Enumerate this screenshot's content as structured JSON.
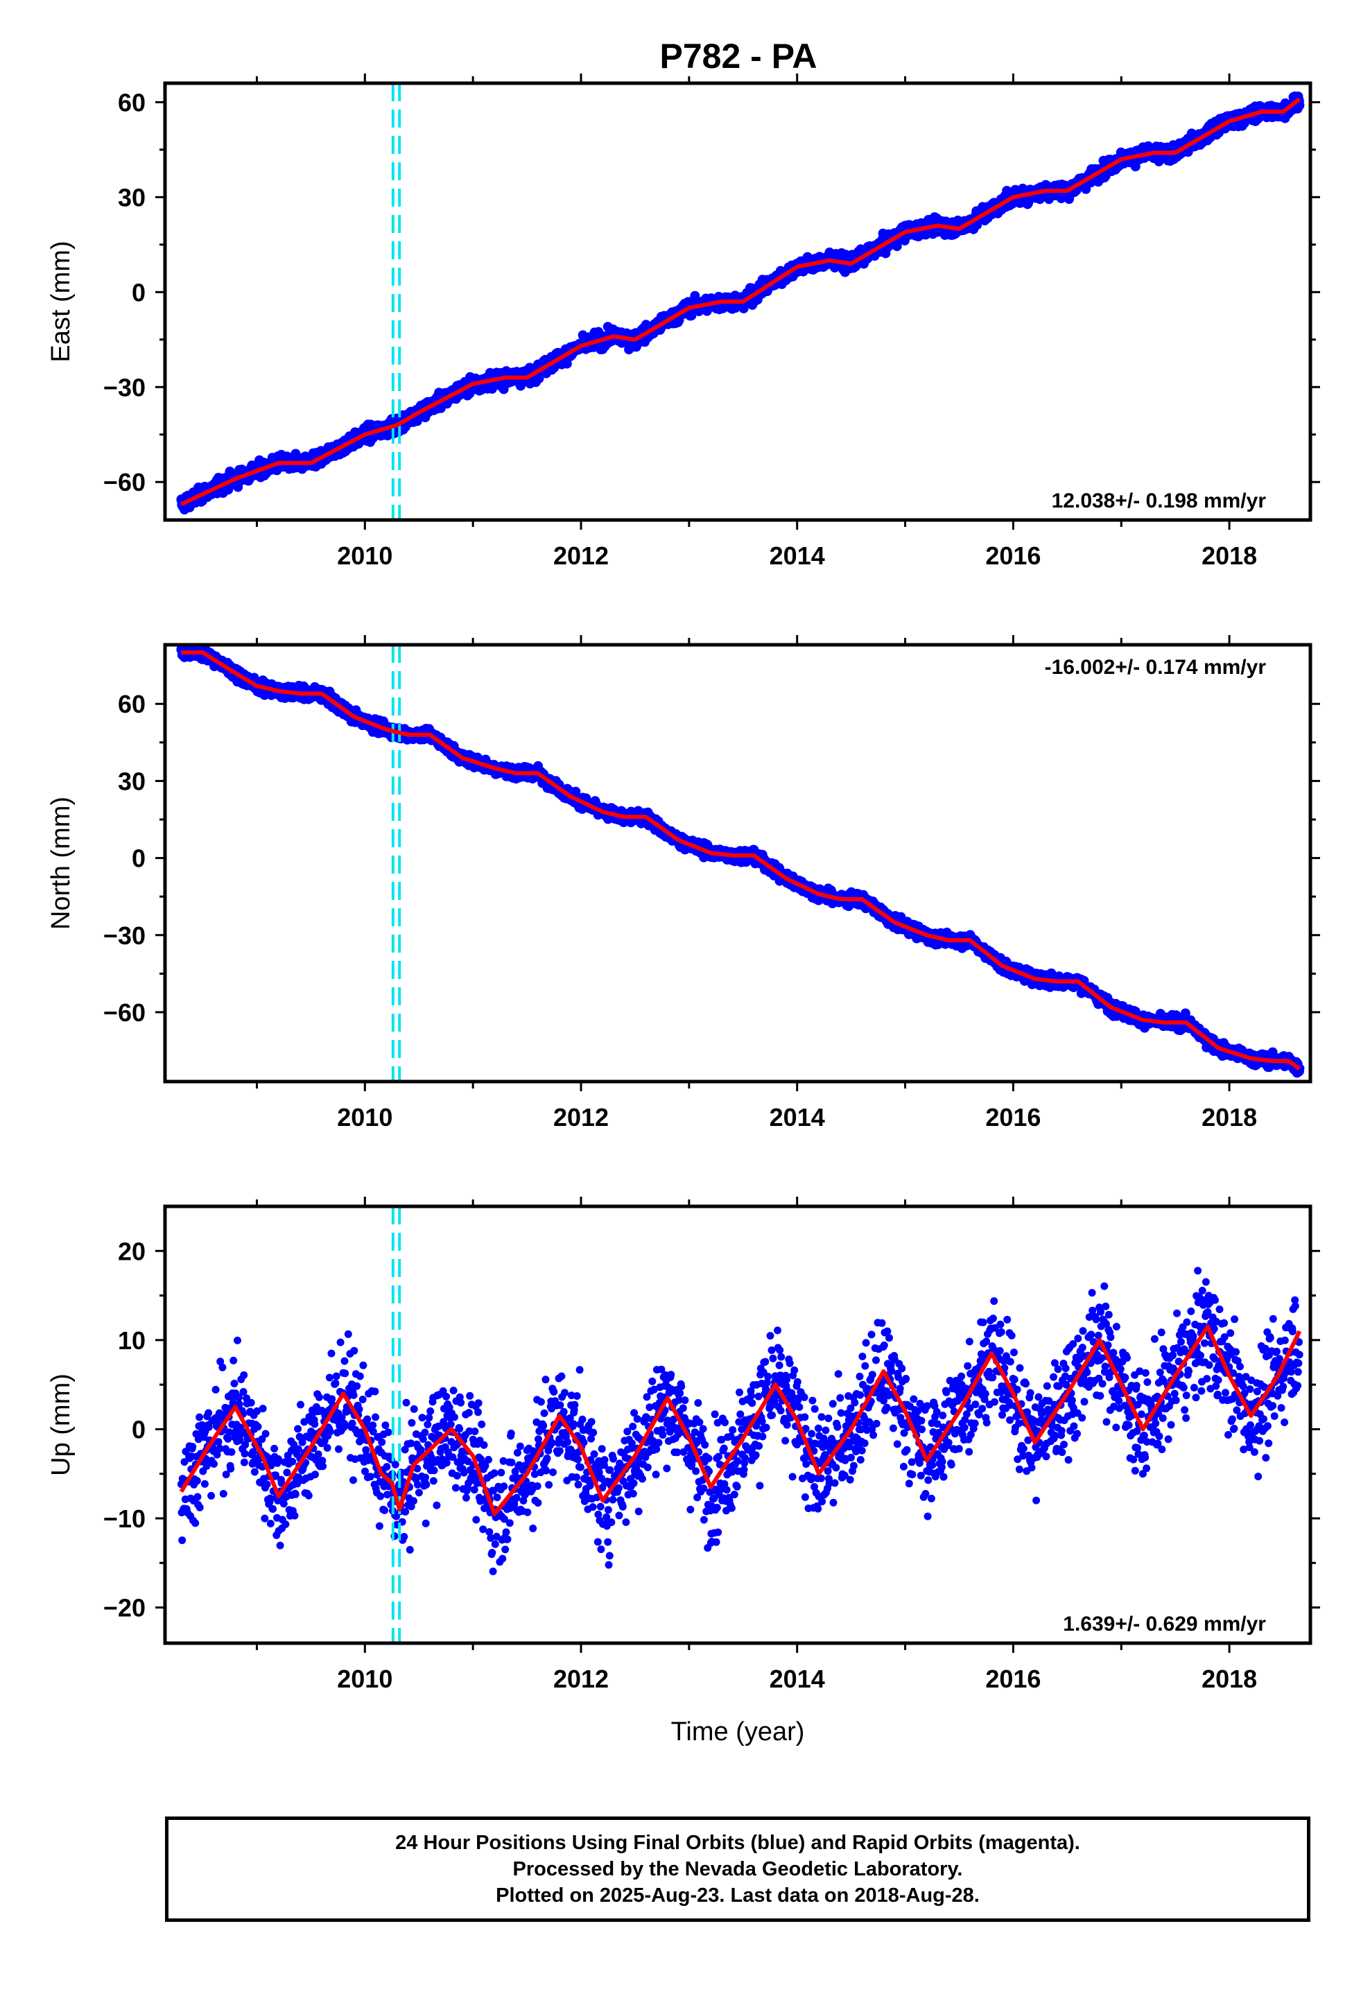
{
  "title": "P782 - PA",
  "colors": {
    "points": "#0000ff",
    "fit": "#ff0000",
    "event_lines": "#00e5ee",
    "frame": "#000000"
  },
  "footer": {
    "line1": "24 Hour Positions Using Final Orbits (blue) and Rapid Orbits (magenta).",
    "line2": "Processed by the Nevada Geodetic Laboratory.",
    "line3": "Plotted on 2025-Aug-23. Last data on 2018-Aug-28."
  },
  "chart_data": [
    {
      "type": "scatter",
      "name": "east",
      "ylabel": "East (mm)",
      "xlabel": "",
      "xlim": [
        2008.15,
        2018.75
      ],
      "ylim": [
        -72,
        66
      ],
      "x_ticks": [
        2010,
        2012,
        2014,
        2016,
        2018
      ],
      "y_ticks": [
        -60,
        -30,
        0,
        30,
        60
      ],
      "rate_label": "12.038+/- 0.198 mm/yr",
      "rate_position": "bottom-right",
      "event_lines": [
        2010.26,
        2010.32
      ],
      "trend": {
        "start_year": 2008.3,
        "end_year": 2018.65,
        "start_value": -67,
        "end_value": 61
      },
      "fit_curve": [
        [
          2008.3,
          -67
        ],
        [
          2008.8,
          -59
        ],
        [
          2009.2,
          -54
        ],
        [
          2009.5,
          -54
        ],
        [
          2010.0,
          -45
        ],
        [
          2010.3,
          -42
        ],
        [
          2010.5,
          -38
        ],
        [
          2011.0,
          -29
        ],
        [
          2011.3,
          -27
        ],
        [
          2011.5,
          -27
        ],
        [
          2012.0,
          -17
        ],
        [
          2012.3,
          -14
        ],
        [
          2012.5,
          -15
        ],
        [
          2013.0,
          -5
        ],
        [
          2013.3,
          -3
        ],
        [
          2013.5,
          -3
        ],
        [
          2014.0,
          8
        ],
        [
          2014.3,
          10
        ],
        [
          2014.5,
          9
        ],
        [
          2015.0,
          19
        ],
        [
          2015.3,
          21
        ],
        [
          2015.5,
          20
        ],
        [
          2016.0,
          30
        ],
        [
          2016.3,
          32
        ],
        [
          2016.5,
          32
        ],
        [
          2017.0,
          42
        ],
        [
          2017.3,
          44
        ],
        [
          2017.5,
          44
        ],
        [
          2018.0,
          54
        ],
        [
          2018.3,
          57
        ],
        [
          2018.5,
          57
        ],
        [
          2018.65,
          61
        ]
      ]
    },
    {
      "type": "scatter",
      "name": "north",
      "ylabel": "North (mm)",
      "xlabel": "",
      "xlim": [
        2008.15,
        2018.75
      ],
      "ylim": [
        -87,
        83
      ],
      "x_ticks": [
        2010,
        2012,
        2014,
        2016,
        2018
      ],
      "y_ticks": [
        -60,
        -30,
        0,
        30,
        60
      ],
      "rate_label": "-16.002+/- 0.174 mm/yr",
      "rate_position": "top-right",
      "event_lines": [
        2010.26,
        2010.32
      ],
      "trend": {
        "start_year": 2008.3,
        "end_year": 2018.65,
        "start_value": 80,
        "end_value": -82
      },
      "fit_curve": [
        [
          2008.3,
          80
        ],
        [
          2008.5,
          80
        ],
        [
          2008.8,
          72
        ],
        [
          2009.0,
          67
        ],
        [
          2009.2,
          65
        ],
        [
          2009.4,
          64
        ],
        [
          2009.6,
          64
        ],
        [
          2009.9,
          55
        ],
        [
          2010.2,
          50
        ],
        [
          2010.4,
          48
        ],
        [
          2010.6,
          48
        ],
        [
          2010.9,
          39
        ],
        [
          2011.2,
          35
        ],
        [
          2011.4,
          33
        ],
        [
          2011.6,
          33
        ],
        [
          2011.9,
          24
        ],
        [
          2012.2,
          18
        ],
        [
          2012.4,
          16
        ],
        [
          2012.6,
          16
        ],
        [
          2012.9,
          7
        ],
        [
          2013.2,
          2
        ],
        [
          2013.4,
          1
        ],
        [
          2013.6,
          1
        ],
        [
          2013.9,
          -8
        ],
        [
          2014.2,
          -14
        ],
        [
          2014.4,
          -16
        ],
        [
          2014.6,
          -16
        ],
        [
          2014.9,
          -25
        ],
        [
          2015.2,
          -30
        ],
        [
          2015.4,
          -32
        ],
        [
          2015.6,
          -32
        ],
        [
          2015.9,
          -42
        ],
        [
          2016.2,
          -47
        ],
        [
          2016.4,
          -48
        ],
        [
          2016.6,
          -48
        ],
        [
          2016.9,
          -58
        ],
        [
          2017.2,
          -63
        ],
        [
          2017.4,
          -64
        ],
        [
          2017.6,
          -64
        ],
        [
          2017.9,
          -74
        ],
        [
          2018.2,
          -78
        ],
        [
          2018.4,
          -79
        ],
        [
          2018.55,
          -79
        ],
        [
          2018.65,
          -82
        ]
      ]
    },
    {
      "type": "scatter",
      "name": "up",
      "ylabel": "Up (mm)",
      "xlabel": "Time (year)",
      "xlim": [
        2008.15,
        2018.75
      ],
      "ylim": [
        -24,
        25
      ],
      "x_ticks": [
        2010,
        2012,
        2014,
        2016,
        2018
      ],
      "y_ticks": [
        -20,
        -10,
        0,
        10,
        20
      ],
      "rate_label": "1.639+/- 0.629 mm/yr",
      "rate_position": "bottom-right",
      "event_lines": [
        2010.26,
        2010.32
      ],
      "trend": {
        "mean": 1.639,
        "amplitude": 5,
        "phase_peak_year": 2008.8
      },
      "fit_curve": [
        [
          2008.3,
          -7
        ],
        [
          2008.55,
          -2
        ],
        [
          2008.8,
          2.5
        ],
        [
          2009.05,
          -3
        ],
        [
          2009.2,
          -7.5
        ],
        [
          2009.5,
          -2
        ],
        [
          2009.8,
          4
        ],
        [
          2010.0,
          0
        ],
        [
          2010.15,
          -5
        ],
        [
          2010.25,
          -6
        ],
        [
          2010.32,
          -9
        ],
        [
          2010.45,
          -4
        ],
        [
          2010.8,
          0
        ],
        [
          2011.0,
          -3
        ],
        [
          2011.2,
          -9.5
        ],
        [
          2011.5,
          -5
        ],
        [
          2011.8,
          1.5
        ],
        [
          2012.0,
          -2
        ],
        [
          2012.2,
          -8
        ],
        [
          2012.5,
          -3
        ],
        [
          2012.8,
          3.5
        ],
        [
          2013.0,
          -1
        ],
        [
          2013.2,
          -6.5
        ],
        [
          2013.5,
          -1
        ],
        [
          2013.8,
          5
        ],
        [
          2014.0,
          1
        ],
        [
          2014.2,
          -5
        ],
        [
          2014.5,
          0
        ],
        [
          2014.8,
          6.5
        ],
        [
          2015.0,
          2
        ],
        [
          2015.2,
          -3.5
        ],
        [
          2015.5,
          2
        ],
        [
          2015.8,
          8.5
        ],
        [
          2016.0,
          4
        ],
        [
          2016.2,
          -1.5
        ],
        [
          2016.5,
          4
        ],
        [
          2016.8,
          10
        ],
        [
          2017.0,
          5
        ],
        [
          2017.2,
          0
        ],
        [
          2017.5,
          6
        ],
        [
          2017.8,
          11.5
        ],
        [
          2018.0,
          6
        ],
        [
          2018.2,
          1.5
        ],
        [
          2018.45,
          6
        ],
        [
          2018.65,
          11
        ]
      ]
    }
  ]
}
